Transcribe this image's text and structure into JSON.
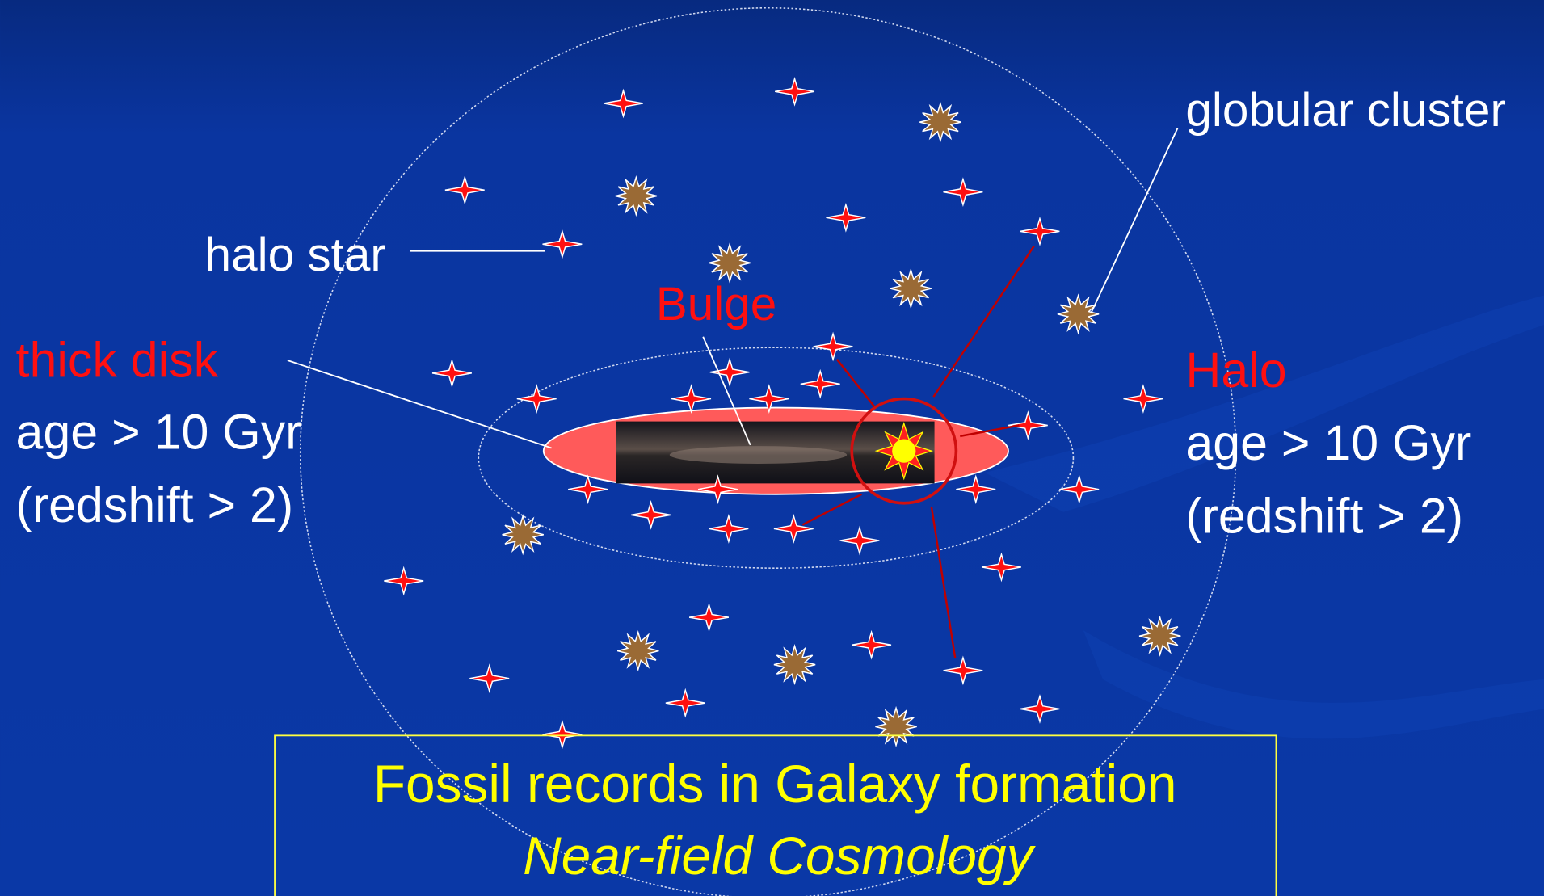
{
  "callouts": {
    "globular_cluster": "globular cluster",
    "halo_star": "halo star",
    "bulge": "Bulge"
  },
  "thick_disk": {
    "name": "thick disk",
    "age": "age > 10 Gyr",
    "redshift": "(redshift > 2)"
  },
  "halo": {
    "name": "Halo",
    "age": "age > 10 Gyr",
    "redshift": "(redshift > 2)"
  },
  "caption": {
    "title": "Fossil records in Galaxy formation",
    "subtitle": "Near-field Cosmology"
  }
}
